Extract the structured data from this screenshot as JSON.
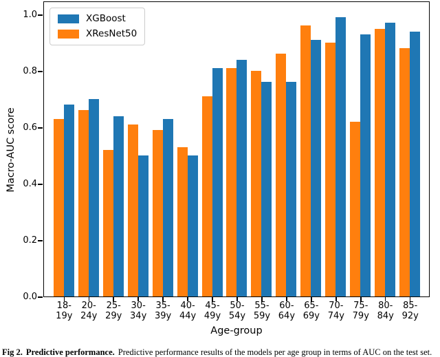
{
  "figure": {
    "ylabel": "Macro-AUC score",
    "xlabel": "Age-group",
    "yticks": [
      "0.0",
      "0.2",
      "0.4",
      "0.6",
      "0.8",
      "1.0"
    ]
  },
  "legend": {
    "items": [
      {
        "label": "XGBoost",
        "color": "#1f77b4"
      },
      {
        "label": "XResNet50",
        "color": "#ff7f0e"
      }
    ]
  },
  "chart_data": {
    "type": "bar",
    "title": "",
    "xlabel": "Age-group",
    "ylabel": "Macro-AUC score",
    "ylim": [
      0.0,
      1.05
    ],
    "grid": false,
    "legend_position": "upper left",
    "categories": [
      "18-19y",
      "20-24y",
      "25-29y",
      "30-34y",
      "35-39y",
      "40-44y",
      "45-49y",
      "50-54y",
      "55-59y",
      "60-64y",
      "65-69y",
      "70-74y",
      "75-79y",
      "80-84y",
      "85-92y"
    ],
    "category_tick_lines": [
      [
        "18-",
        "19y"
      ],
      [
        "20-",
        "24y"
      ],
      [
        "25-",
        "29y"
      ],
      [
        "30-",
        "34y"
      ],
      [
        "35-",
        "39y"
      ],
      [
        "40-",
        "44y"
      ],
      [
        "45-",
        "49y"
      ],
      [
        "50-",
        "54y"
      ],
      [
        "55-",
        "59y"
      ],
      [
        "60-",
        "64y"
      ],
      [
        "65-",
        "69y"
      ],
      [
        "70-",
        "74y"
      ],
      [
        "75-",
        "79y"
      ],
      [
        "80-",
        "84y"
      ],
      [
        "85-",
        "92y"
      ]
    ],
    "series": [
      {
        "name": "XResNet50",
        "color": "#ff7f0e",
        "position_in_group": "left",
        "values": [
          0.63,
          0.66,
          0.52,
          0.61,
          0.59,
          0.53,
          0.71,
          0.81,
          0.8,
          0.86,
          0.96,
          0.9,
          0.62,
          0.95,
          0.88
        ]
      },
      {
        "name": "XGBoost",
        "color": "#1f77b4",
        "position_in_group": "right",
        "values": [
          0.68,
          0.7,
          0.64,
          0.5,
          0.63,
          0.5,
          0.81,
          0.84,
          0.76,
          0.76,
          0.91,
          0.99,
          0.93,
          0.97,
          0.94
        ]
      }
    ]
  },
  "caption": {
    "bold1": "Fig 2.",
    "bold2": "Predictive performance.",
    "rest": "Predictive performance results of the models per age group in terms of AUC on the test set."
  }
}
